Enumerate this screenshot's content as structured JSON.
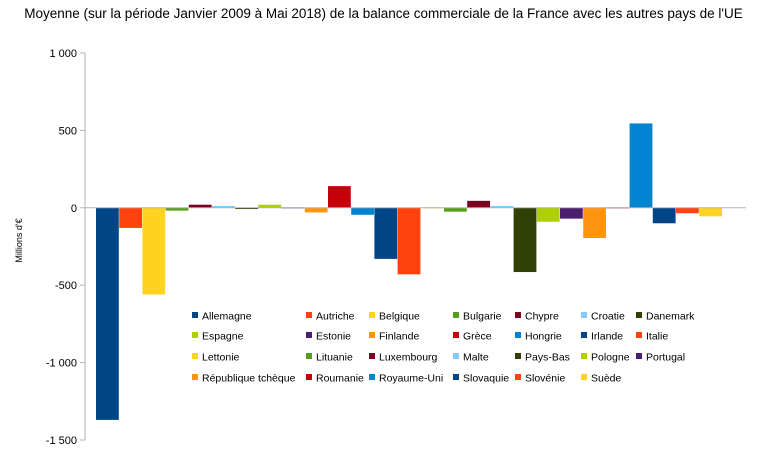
{
  "chart_data": {
    "type": "bar",
    "title": "Moyenne (sur la période Janvier 2009 à Mai 2018) de la balance commerciale de la France avec les autres pays de l'UE",
    "xlabel": "",
    "ylabel": "Millions d'€",
    "ylim": [
      -1500,
      1000
    ],
    "yticks": [
      1000,
      500,
      0,
      -500,
      -1000,
      -1500
    ],
    "ytick_labels": [
      "1 000",
      "500",
      "0",
      "-500",
      "-1 000",
      "-1 500"
    ],
    "grid": false,
    "legend_position": "bottom-right-inside",
    "series": [
      {
        "name": "Allemagne",
        "value": -1370,
        "color": "#004586"
      },
      {
        "name": "Autriche",
        "value": -130,
        "color": "#ff420e"
      },
      {
        "name": "Belgique",
        "value": -560,
        "color": "#ffd320"
      },
      {
        "name": "Bulgarie",
        "value": -18,
        "color": "#579d1c"
      },
      {
        "name": "Chypre",
        "value": 20,
        "color": "#7e0021"
      },
      {
        "name": "Croatie",
        "value": 12,
        "color": "#83caff"
      },
      {
        "name": "Danemark",
        "value": -8,
        "color": "#314004"
      },
      {
        "name": "Espagne",
        "value": 20,
        "color": "#aecf00"
      },
      {
        "name": "Estonie",
        "value": 3,
        "color": "#4b1f6f"
      },
      {
        "name": "Finlande",
        "value": -30,
        "color": "#ff950e"
      },
      {
        "name": "Grèce",
        "value": 140,
        "color": "#c5000b"
      },
      {
        "name": "Hongrie",
        "value": -45,
        "color": "#0084d1"
      },
      {
        "name": "Irlande",
        "value": -330,
        "color": "#004586"
      },
      {
        "name": "Italie",
        "value": -430,
        "color": "#ff420e"
      },
      {
        "name": "Lettonie",
        "value": 3,
        "color": "#ffd320"
      },
      {
        "name": "Lituanie",
        "value": -25,
        "color": "#579d1c"
      },
      {
        "name": "Luxembourg",
        "value": 45,
        "color": "#7e0021"
      },
      {
        "name": "Malte",
        "value": 12,
        "color": "#83caff"
      },
      {
        "name": "Pays-Bas",
        "value": -415,
        "color": "#314004"
      },
      {
        "name": "Pologne",
        "value": -90,
        "color": "#aecf00"
      },
      {
        "name": "Portugal",
        "value": -70,
        "color": "#4b1f6f"
      },
      {
        "name": "République tchèque",
        "value": -195,
        "color": "#ff950e"
      },
      {
        "name": "Roumanie",
        "value": 3,
        "color": "#c5000b"
      },
      {
        "name": "Royaume-Uni",
        "value": 545,
        "color": "#0084d1"
      },
      {
        "name": "Slovaquie",
        "value": -100,
        "color": "#004586"
      },
      {
        "name": "Slovénie",
        "value": -35,
        "color": "#ff420e"
      },
      {
        "name": "Suède",
        "value": -55,
        "color": "#ffd320"
      }
    ]
  }
}
